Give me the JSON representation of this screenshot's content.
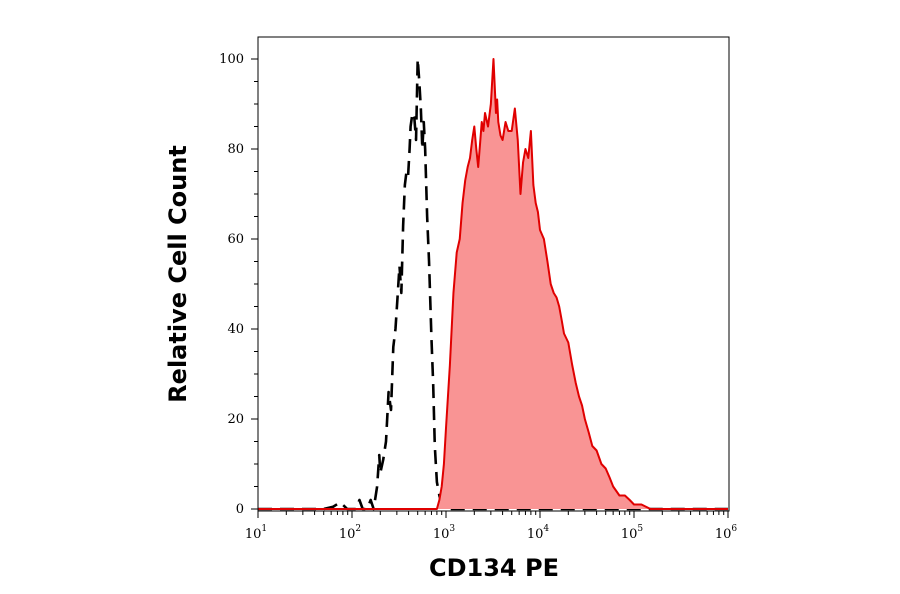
{
  "chart_data": {
    "type": "area",
    "title": "",
    "xlabel": "CD134 PE",
    "ylabel": "Relative Cell Count",
    "x_scale": "log",
    "xlim": [
      10,
      1000000
    ],
    "ylim": [
      0,
      100
    ],
    "x_ticks": [
      {
        "base": "10",
        "exp": "1",
        "value": 10
      },
      {
        "base": "10",
        "exp": "2",
        "value": 100
      },
      {
        "base": "10",
        "exp": "3",
        "value": 1000
      },
      {
        "base": "10",
        "exp": "4",
        "value": 10000
      },
      {
        "base": "10",
        "exp": "5",
        "value": 100000
      },
      {
        "base": "10",
        "exp": "6",
        "value": 1000000
      }
    ],
    "y_ticks": [
      "0",
      "20",
      "40",
      "60",
      "80",
      "100"
    ],
    "grid": false,
    "legend": "none",
    "series": [
      {
        "style": "dashed",
        "color": "#000000",
        "fill": "none",
        "x": [
          10,
          50,
          63,
          75,
          89,
          100,
          110,
          120,
          130,
          145,
          158,
          170,
          185,
          195,
          200,
          215,
          230,
          245,
          260,
          275,
          290,
          305,
          320,
          335,
          350,
          365,
          380,
          395,
          410,
          420,
          440,
          460,
          480,
          500,
          520,
          540,
          560,
          580,
          600,
          630,
          660,
          700,
          730,
          760,
          800,
          850,
          900,
          1000,
          1000000
        ],
        "y": [
          0,
          0,
          0.5,
          1.5,
          0,
          0,
          0,
          2,
          0,
          0,
          2,
          0,
          5,
          12,
          8,
          11,
          15,
          26,
          22,
          36,
          40,
          47,
          54,
          48,
          63,
          72,
          75,
          74,
          80,
          85,
          88,
          87,
          82,
          100,
          95,
          89,
          80,
          86,
          80,
          65,
          55,
          38,
          28,
          14,
          6,
          3,
          1,
          0,
          0
        ]
      },
      {
        "style": "solid",
        "color": "#e00000",
        "fill": "#f99494",
        "x": [
          10,
          800,
          850,
          900,
          950,
          1000,
          1100,
          1200,
          1300,
          1400,
          1500,
          1600,
          1700,
          1800,
          1900,
          2000,
          2100,
          2200,
          2300,
          2400,
          2500,
          2600,
          2800,
          3000,
          3200,
          3400,
          3500,
          3600,
          3800,
          4000,
          4300,
          4600,
          5000,
          5400,
          5800,
          6200,
          6600,
          7000,
          7500,
          8000,
          8500,
          9000,
          9500,
          10000,
          11000,
          12000,
          13000,
          14000,
          15000,
          16000,
          17000,
          18000,
          20000,
          22000,
          24000,
          26000,
          28000,
          30000,
          33000,
          36000,
          40000,
          45000,
          50000,
          55000,
          60000,
          70000,
          80000,
          90000,
          100000,
          120000,
          150000,
          200000,
          1000000
        ],
        "y": [
          0,
          0,
          2,
          5,
          10,
          18,
          32,
          48,
          57,
          60,
          68,
          73,
          76,
          78,
          82,
          85,
          80,
          76,
          81,
          86,
          84,
          88,
          85,
          90,
          100,
          88,
          91,
          86,
          83,
          82,
          86,
          84,
          84,
          89,
          82,
          70,
          77,
          80,
          78,
          84,
          72,
          68,
          66,
          62,
          60,
          55,
          50,
          48,
          47,
          45,
          42,
          39,
          37,
          32,
          28,
          25,
          23,
          20,
          17,
          14,
          13,
          10,
          9,
          7,
          5,
          3,
          3,
          2,
          1,
          1,
          0,
          0,
          0
        ]
      }
    ]
  }
}
